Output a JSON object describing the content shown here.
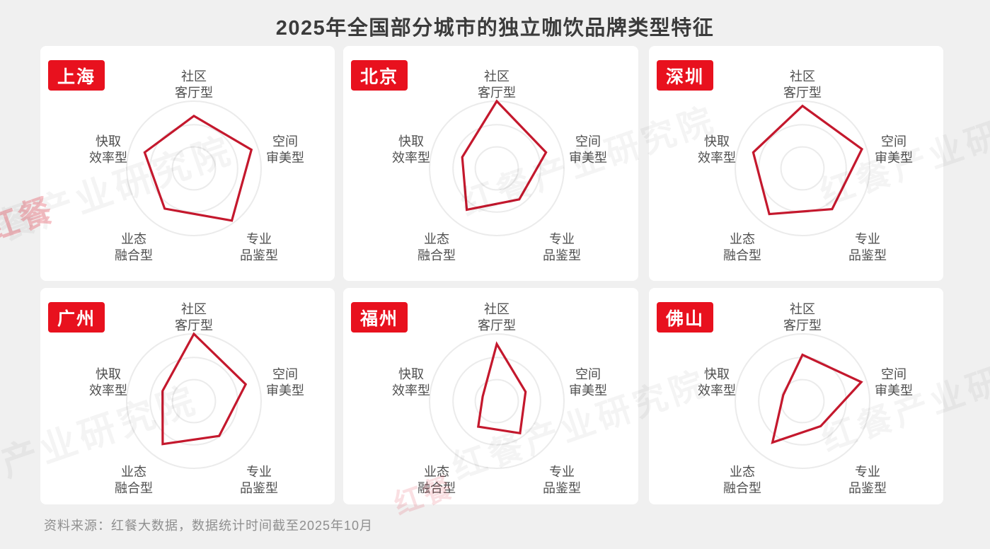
{
  "page": {
    "title": "2025年全国部分城市的独立咖饮品牌类型特征",
    "source_note": "资料来源：红餐大数据，数据统计时间截至2025年10月",
    "watermark_text": "红餐产业研究院",
    "watermark_accent_text": "红餐",
    "colors": {
      "background": "#f0f0f0",
      "card_background": "#ffffff",
      "title_text": "#3b3b3b",
      "axis_label_text": "#4f4f4f",
      "chip_background": "#e8111e",
      "chip_text": "#ffffff",
      "polygon_stroke": "#c4182d",
      "grid_ring": "#ebebeb",
      "source_text": "#8f8f8f",
      "watermark_gray": "rgba(0,0,0,0.045)",
      "watermark_red": "rgba(222,30,48,0.28)"
    }
  },
  "chart_data": {
    "type": "radar",
    "title": "2025年全国部分城市的独立咖饮品牌类型特征",
    "grid": "concentric-circles",
    "legend_position": "none",
    "scale_max": 100,
    "grid_rings_pct": [
      32,
      65,
      100
    ],
    "axes": [
      {
        "label": "社区客厅型",
        "line1": "社区",
        "line2": "客厅型",
        "angle_deg": 90
      },
      {
        "label": "空间审美型",
        "line1": "空间",
        "line2": "审美型",
        "angle_deg": 18
      },
      {
        "label": "专业品鉴型",
        "line1": "专业",
        "line2": "品鉴型",
        "angle_deg": -54
      },
      {
        "label": "业态融合型",
        "line1": "业态",
        "line2": "融合型",
        "angle_deg": 234
      },
      {
        "label": "快取效率型",
        "line1": "快取",
        "line2": "效率型",
        "angle_deg": 162
      }
    ],
    "cities": [
      {
        "name": "上海",
        "values": [
          78,
          90,
          96,
          74,
          77
        ]
      },
      {
        "name": "北京",
        "values": [
          100,
          77,
          57,
          76,
          54
        ]
      },
      {
        "name": "深圳",
        "values": [
          93,
          93,
          75,
          84,
          77
        ]
      },
      {
        "name": "广州",
        "values": [
          100,
          81,
          64,
          79,
          49
        ]
      },
      {
        "name": "福州",
        "values": [
          85,
          45,
          59,
          47,
          22
        ]
      },
      {
        "name": "佛山",
        "values": [
          69,
          92,
          46,
          76,
          30
        ]
      }
    ]
  }
}
